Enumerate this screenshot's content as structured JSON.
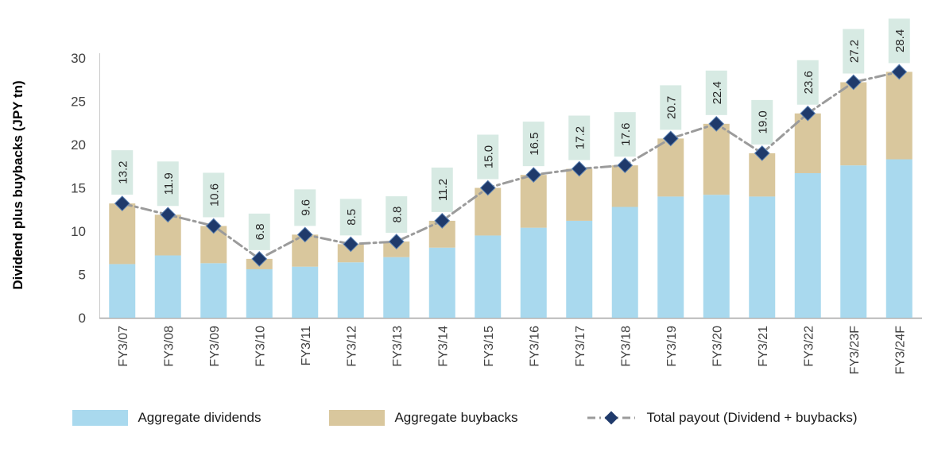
{
  "chart_data": {
    "type": "bar",
    "subtype": "stacked-bars-with-total-line",
    "title": "",
    "ylabel": "Dividend plus buybacks (JPY tn)",
    "xlabel": "",
    "ylim": [
      0,
      30
    ],
    "yticks": [
      0,
      5,
      10,
      15,
      20,
      25,
      30
    ],
    "grid": "off",
    "legend_position": "bottom",
    "categories": [
      "FY3/07",
      "FY3/08",
      "FY3/09",
      "FY3/10",
      "FY3/11",
      "FY3/12",
      "FY3/13",
      "FY3/14",
      "FY3/15",
      "FY3/16",
      "FY3/17",
      "FY3/18",
      "FY3/19",
      "FY3/20",
      "FY3/21",
      "FY3/22",
      "FY3/23F",
      "FY3/24F"
    ],
    "series": [
      {
        "name": "Aggregate dividends",
        "color": "#a9d9ee",
        "values": [
          6.2,
          7.2,
          6.3,
          5.6,
          5.9,
          6.4,
          7.0,
          8.1,
          9.5,
          10.4,
          11.2,
          12.8,
          14.0,
          14.2,
          14.0,
          16.7,
          17.6,
          18.3
        ]
      },
      {
        "name": "Aggregate buybacks",
        "color": "#d9c79d",
        "values": [
          7.0,
          4.7,
          4.3,
          1.2,
          3.7,
          2.1,
          1.8,
          3.1,
          5.5,
          6.1,
          6.0,
          4.8,
          6.7,
          8.2,
          5.0,
          6.9,
          9.6,
          10.1
        ]
      }
    ],
    "totals": [
      13.2,
      11.9,
      10.6,
      6.8,
      9.6,
      8.5,
      8.8,
      11.2,
      15.0,
      16.5,
      17.2,
      17.6,
      20.7,
      22.4,
      19.0,
      23.6,
      27.2,
      28.4
    ],
    "line_series": {
      "name": "Total payout (Dividend + buybacks)",
      "color": "#9b9b9b",
      "marker_color": "#1f3a6b",
      "marker_stroke": "#5d83b4"
    },
    "label_bg": "#d7eae3",
    "axis_color": "#a6a6a6"
  }
}
